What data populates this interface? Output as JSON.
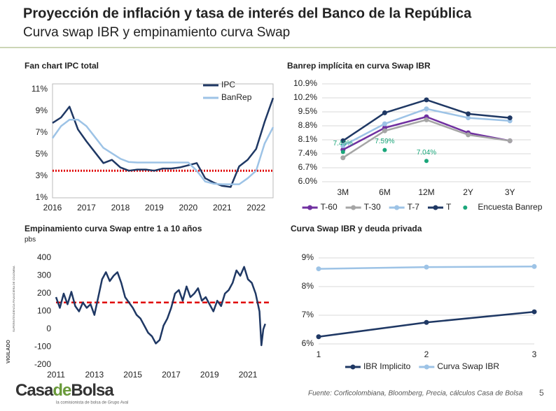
{
  "header": {
    "title": "Proyección de inflación y tasa de interés del Banco de la República",
    "subtitle": "Curva swap IBR y empinamiento curva Swap"
  },
  "chart_data": [
    {
      "type": "line",
      "title": "Fan chart IPC total",
      "frame": true,
      "x": [
        2016,
        2016.25,
        2016.5,
        2016.75,
        2017,
        2017.25,
        2017.5,
        2017.75,
        2018,
        2018.25,
        2018.5,
        2018.75,
        2019,
        2019.25,
        2019.5,
        2019.75,
        2020,
        2020.25,
        2020.5,
        2020.75,
        2021,
        2021.25,
        2021.5,
        2021.75,
        2022,
        2022.25,
        2022.5
      ],
      "xlim": [
        2016,
        2022.5
      ],
      "xticks": [
        2016,
        2017,
        2018,
        2019,
        2020,
        2021,
        2022
      ],
      "ylim": [
        1,
        11.5
      ],
      "yticks": [
        {
          "value": 1,
          "label": "1%"
        },
        {
          "value": 3,
          "label": "3%"
        },
        {
          "value": 5,
          "label": "5%"
        },
        {
          "value": 7,
          "label": "7%"
        },
        {
          "value": 9,
          "label": "9%"
        },
        {
          "value": 11,
          "label": "11%"
        }
      ],
      "series": [
        {
          "name": "IPC",
          "color": "#1f3864",
          "values": [
            7.9,
            8.4,
            9.4,
            7.3,
            6.2,
            5.2,
            4.2,
            4.5,
            3.8,
            3.5,
            3.6,
            3.6,
            3.5,
            3.7,
            3.7,
            3.8,
            4.0,
            4.2,
            2.8,
            2.4,
            2.1,
            2.0,
            3.9,
            4.5,
            5.5,
            8.0,
            10.2
          ]
        },
        {
          "name": "BanRep",
          "color": "#9dc3e6",
          "values": [
            6.5,
            7.6,
            8.2,
            8.2,
            7.6,
            6.6,
            5.6,
            5.1,
            4.6,
            4.3,
            4.25,
            4.25,
            4.25,
            4.25,
            4.25,
            4.25,
            4.25,
            3.5,
            2.5,
            2.3,
            2.25,
            2.25,
            2.25,
            2.8,
            3.5,
            6.0,
            7.5
          ]
        }
      ],
      "hline": {
        "value": 3.5,
        "color": "#e00000",
        "style": "dotted"
      },
      "legend": "top-right"
    },
    {
      "type": "line",
      "title": "Banrep implícita en curva Swap IBR",
      "grid": true,
      "markers": true,
      "categories": [
        "3M",
        "6M",
        "12M",
        "2Y",
        "3Y"
      ],
      "ylim": [
        6.0,
        10.9
      ],
      "yticks": [
        {
          "value": 6.0,
          "label": "6.0%"
        },
        {
          "value": 6.7,
          "label": "6.7%"
        },
        {
          "value": 7.4,
          "label": "7.4%"
        },
        {
          "value": 8.1,
          "label": "8.1%"
        },
        {
          "value": 8.8,
          "label": "8.8%"
        },
        {
          "value": 9.5,
          "label": "9.5%"
        },
        {
          "value": 10.2,
          "label": "10.2%"
        },
        {
          "value": 10.9,
          "label": "10.9%"
        }
      ],
      "series": [
        {
          "name": "T-60",
          "color": "#7030a0",
          "values": [
            7.6,
            8.7,
            9.25,
            8.45,
            8.05
          ]
        },
        {
          "name": "T-30",
          "color": "#a5a5a5",
          "values": [
            7.2,
            8.55,
            9.1,
            8.35,
            8.05
          ]
        },
        {
          "name": "T-7",
          "color": "#9dc3e6",
          "values": [
            7.8,
            8.9,
            9.65,
            9.2,
            9.05
          ]
        },
        {
          "name": "T",
          "color": "#1f3864",
          "values": [
            8.05,
            9.45,
            10.1,
            9.4,
            9.2
          ]
        },
        {
          "name": "Encuesta Banrep",
          "color": "#1aa67a",
          "mode": "markers",
          "values": [
            7.49,
            7.59,
            7.04,
            null,
            null
          ],
          "value_labels": [
            "7.49%",
            "7.59%",
            "7.04%",
            null,
            null
          ]
        }
      ],
      "legend": "bottom"
    },
    {
      "type": "line",
      "title": "Empinamiento curva Swap entre 1 a 10 años",
      "unit": "pbs",
      "x": [
        2011,
        2011.2,
        2011.4,
        2011.6,
        2011.8,
        2012,
        2012.2,
        2012.4,
        2012.6,
        2012.8,
        2013,
        2013.2,
        2013.4,
        2013.6,
        2013.8,
        2014,
        2014.2,
        2014.4,
        2014.6,
        2014.8,
        2015,
        2015.2,
        2015.4,
        2015.6,
        2015.8,
        2016,
        2016.2,
        2016.4,
        2016.6,
        2016.8,
        2017,
        2017.2,
        2017.4,
        2017.6,
        2017.8,
        2018,
        2018.2,
        2018.4,
        2018.6,
        2018.8,
        2019,
        2019.2,
        2019.4,
        2019.6,
        2019.8,
        2020,
        2020.2,
        2020.4,
        2020.6,
        2020.8,
        2021,
        2021.2,
        2021.4,
        2021.6,
        2021.7,
        2021.8,
        2021.9
      ],
      "xlim": [
        2011,
        2022.2
      ],
      "xticks": [
        2011,
        2013,
        2015,
        2017,
        2019,
        2021
      ],
      "ylim": [
        -200,
        400
      ],
      "yticks": [
        -200,
        -100,
        0,
        100,
        200,
        300,
        400
      ],
      "series": [
        {
          "color": "#1f3864",
          "values": [
            180,
            120,
            200,
            140,
            210,
            130,
            100,
            150,
            120,
            140,
            80,
            180,
            280,
            320,
            270,
            300,
            320,
            260,
            180,
            150,
            120,
            80,
            60,
            20,
            -20,
            -40,
            -80,
            -60,
            20,
            60,
            120,
            200,
            220,
            160,
            240,
            180,
            200,
            230,
            160,
            180,
            140,
            100,
            160,
            130,
            200,
            220,
            260,
            330,
            300,
            350,
            280,
            260,
            200,
            100,
            -90,
            0,
            30
          ]
        }
      ],
      "hline": {
        "value": 150,
        "color": "#e00000",
        "style": "dashed"
      }
    },
    {
      "type": "line",
      "title": "Curva Swap IBR y deuda privada",
      "grid": true,
      "markers": true,
      "x": [
        1,
        2,
        3
      ],
      "xlim": [
        1,
        3
      ],
      "xticks": [
        1,
        2,
        3
      ],
      "ylim": [
        6,
        9
      ],
      "yticks": [
        {
          "value": 6,
          "label": "6%"
        },
        {
          "value": 7,
          "label": "7%"
        },
        {
          "value": 8,
          "label": "8%"
        },
        {
          "value": 9,
          "label": "9%"
        }
      ],
      "series": [
        {
          "name": "IBR Implicito",
          "color": "#1f3864",
          "values": [
            6.25,
            6.75,
            7.12
          ]
        },
        {
          "name": "Curva Swap IBR",
          "color": "#9dc3e6",
          "values": [
            8.62,
            8.68,
            8.7
          ]
        }
      ],
      "legend": "bottom"
    }
  ],
  "footer": {
    "source": "Fuente: Corficolombiana, Bloomberg, Precia, cálculos Casa de Bolsa",
    "page": "5"
  },
  "logo": {
    "parts": [
      "Casa",
      "de",
      "Bolsa"
    ],
    "tagline": "la comisionista de bolsa de Grupo Aval"
  },
  "vigilado": {
    "label": "VIGILADO",
    "entity": "SUPERINTENDENCIA FINANCIERA DE COLOMBIA"
  }
}
